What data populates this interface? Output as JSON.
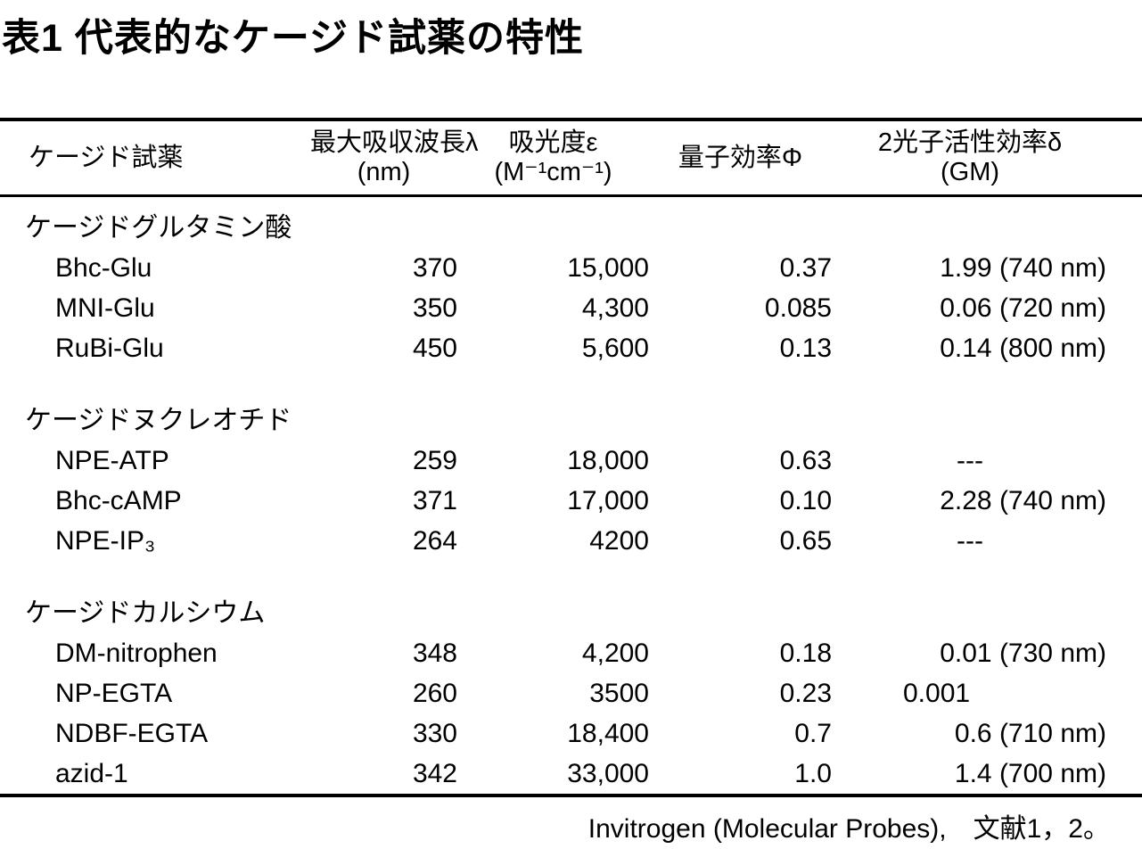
{
  "page": {
    "title": "表1 代表的なケージド試薬の特性",
    "footer": "Invitrogen (Molecular Probes),　文献1，2。"
  },
  "table": {
    "headers": {
      "reagent": "ケージド試薬",
      "wavelength_line1": "最大吸収波長λ",
      "wavelength_line2": "(nm)",
      "absorbance_line1": "吸光度ε",
      "absorbance_line2": "(M⁻¹cm⁻¹)",
      "quantum": "量子効率Φ",
      "twophoton_line1": "2光子活性効率δ",
      "twophoton_line2": "(GM)"
    },
    "groups": [
      {
        "label": "ケージドグルタミン酸",
        "rows": [
          {
            "name": "Bhc-Glu",
            "wavelength": "370",
            "absorbance": "15,000",
            "quantum": "0.37",
            "twophoton": "1.99 (740 nm)"
          },
          {
            "name": "MNI-Glu",
            "wavelength": "350",
            "absorbance": "4,300",
            "quantum": "0.085",
            "twophoton": "0.06 (720 nm)"
          },
          {
            "name": "RuBi-Glu",
            "wavelength": "450",
            "absorbance": "5,600",
            "quantum": "0.13",
            "twophoton": "0.14 (800 nm)"
          }
        ]
      },
      {
        "label": "ケージドヌクレオチド",
        "rows": [
          {
            "name": "NPE-ATP",
            "wavelength": "259",
            "absorbance": "18,000",
            "quantum": "0.63",
            "twophoton": "---"
          },
          {
            "name": "Bhc-cAMP",
            "wavelength": "371",
            "absorbance": "17,000",
            "quantum": "0.10",
            "twophoton": "2.28 (740 nm)"
          },
          {
            "name": "NPE-IP₃",
            "wavelength": "264",
            "absorbance": "4200",
            "quantum": "0.65",
            "twophoton": "---"
          }
        ]
      },
      {
        "label": "ケージドカルシウム",
        "rows": [
          {
            "name": "DM-nitrophen",
            "wavelength": "348",
            "absorbance": "4,200",
            "quantum": "0.18",
            "twophoton": "0.01 (730 nm)"
          },
          {
            "name": "NP-EGTA",
            "wavelength": "260",
            "absorbance": "3500",
            "quantum": "0.23",
            "twophoton": "0.001"
          },
          {
            "name": "NDBF-EGTA",
            "wavelength": "330",
            "absorbance": "18,400",
            "quantum": "0.7",
            "twophoton": "0.6 (710 nm)"
          },
          {
            "name": "azid-1",
            "wavelength": "342",
            "absorbance": "33,000",
            "quantum": "1.0",
            "twophoton": "1.4 (700 nm)"
          }
        ]
      }
    ]
  }
}
